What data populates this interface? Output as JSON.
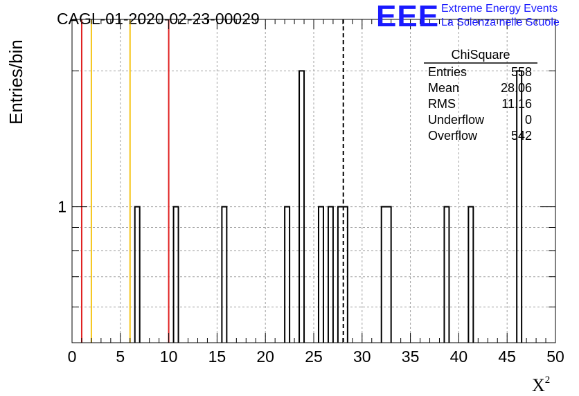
{
  "chart_data": {
    "type": "bar",
    "title": "CAGL-01-2020-02-23-00029",
    "xlabel": "X",
    "xlabel_superscript": "2",
    "ylabel": "Entries/bin",
    "xlim": [
      0,
      50
    ],
    "y_scale": "log",
    "ylim": [
      0.5,
      2.6
    ],
    "x_ticks": [
      0,
      5,
      10,
      15,
      20,
      25,
      30,
      35,
      40,
      45,
      50
    ],
    "y_tick_labels": [
      {
        "value": 1,
        "label": "1"
      }
    ],
    "grid": true,
    "bin_width": 0.5,
    "bins": [
      {
        "x0": 6.5,
        "x1": 7.0,
        "count": 1
      },
      {
        "x0": 10.5,
        "x1": 11.0,
        "count": 1
      },
      {
        "x0": 15.5,
        "x1": 16.0,
        "count": 1
      },
      {
        "x0": 22.0,
        "x1": 22.5,
        "count": 1
      },
      {
        "x0": 23.5,
        "x1": 24.0,
        "count": 2
      },
      {
        "x0": 25.5,
        "x1": 26.0,
        "count": 1
      },
      {
        "x0": 26.5,
        "x1": 27.0,
        "count": 1
      },
      {
        "x0": 27.5,
        "x1": 28.5,
        "count": 1
      },
      {
        "x0": 32.0,
        "x1": 33.0,
        "count": 1
      },
      {
        "x0": 38.5,
        "x1": 39.0,
        "count": 1
      },
      {
        "x0": 41.0,
        "x1": 41.5,
        "count": 1
      },
      {
        "x0": 46.0,
        "x1": 46.5,
        "count": 2
      }
    ],
    "reference_lines": [
      {
        "x": 1,
        "color": "#e02020"
      },
      {
        "x": 2,
        "color": "#f5c518"
      },
      {
        "x": 6,
        "color": "#f5c518"
      },
      {
        "x": 10,
        "color": "#e02020"
      }
    ],
    "mean_line": {
      "x": 28.06,
      "style": "dashed",
      "color": "#000000"
    },
    "stats_box": {
      "title": "ChiSquare",
      "rows": [
        {
          "label": "Entries",
          "value": "558"
        },
        {
          "label": "Mean",
          "value": "28.06"
        },
        {
          "label": "RMS",
          "value": "11.16"
        },
        {
          "label": "Underflow",
          "value": "0"
        },
        {
          "label": "Overflow",
          "value": "542"
        }
      ]
    }
  },
  "logo": {
    "text": "EEE",
    "line1": "Extreme Energy Events",
    "line2": "La Scienza nelle Scuole",
    "color": "#1a1aff"
  }
}
